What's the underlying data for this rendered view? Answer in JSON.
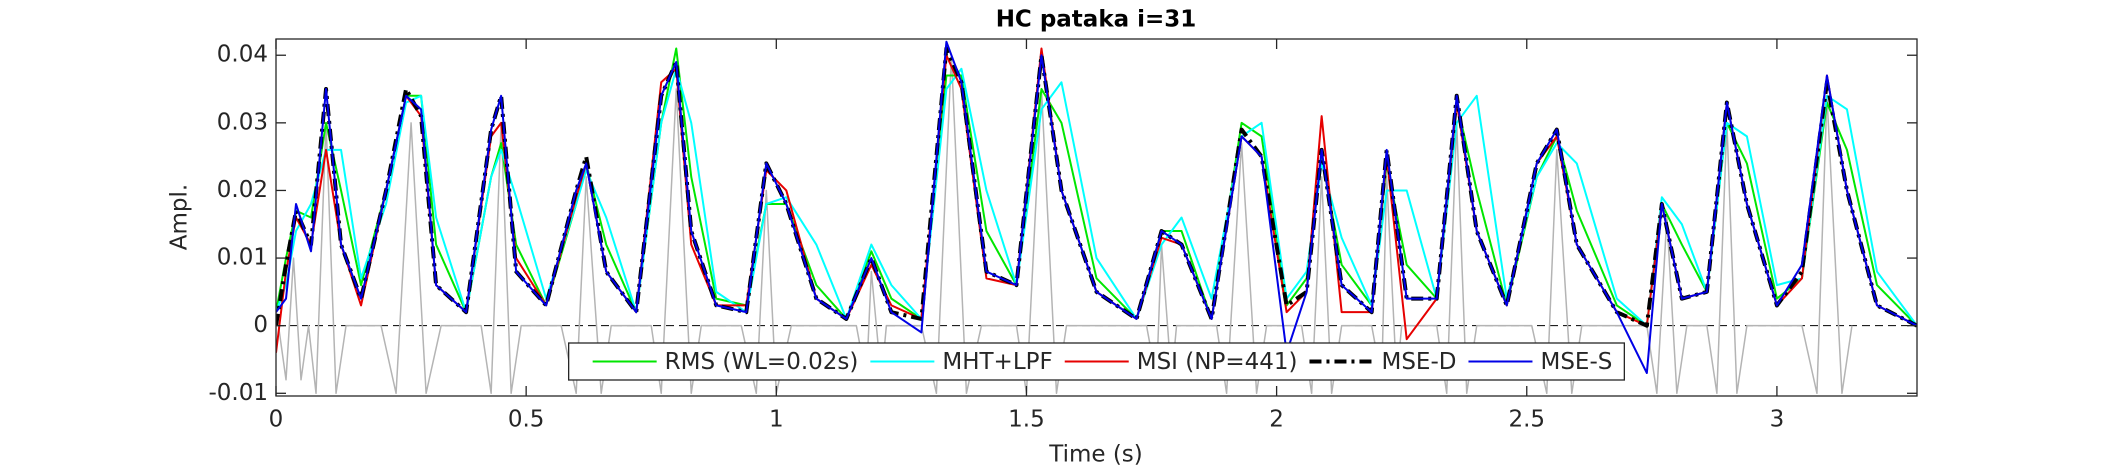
{
  "chart_data": {
    "type": "line",
    "title": "HC pataka i=31",
    "x_label": "Time (s)",
    "y_label": "Ampl.",
    "xlim": [
      0,
      3.28
    ],
    "ylim": [
      -0.0104,
      0.0424
    ],
    "xticks": [
      0,
      0.5,
      1,
      1.5,
      2,
      2.5,
      3
    ],
    "yticks": [
      -0.01,
      0,
      0.01,
      0.02,
      0.03,
      0.04
    ],
    "hlines": [
      0
    ],
    "legend": "lower center",
    "x": [
      0,
      0.02,
      0.04,
      0.07,
      0.1,
      0.13,
      0.17,
      0.22,
      0.26,
      0.29,
      0.32,
      0.38,
      0.43,
      0.45,
      0.48,
      0.54,
      0.6,
      0.62,
      0.66,
      0.72,
      0.77,
      0.8,
      0.83,
      0.88,
      0.94,
      0.98,
      1.02,
      1.08,
      1.14,
      1.19,
      1.23,
      1.29,
      1.34,
      1.37,
      1.42,
      1.48,
      1.53,
      1.57,
      1.64,
      1.72,
      1.77,
      1.81,
      1.87,
      1.93,
      1.97,
      2.02,
      2.06,
      2.09,
      2.13,
      2.19,
      2.22,
      2.26,
      2.32,
      2.36,
      2.4,
      2.46,
      2.52,
      2.56,
      2.6,
      2.68,
      2.74,
      2.77,
      2.81,
      2.86,
      2.9,
      2.94,
      3.0,
      3.05,
      3.1,
      3.14,
      3.2,
      3.28
    ],
    "signal": {
      "color": "#b4b4b4",
      "x": [
        0.005,
        0.02,
        0.035,
        0.05,
        0.065,
        0.08,
        0.1,
        0.12,
        0.14,
        0.21,
        0.24,
        0.27,
        0.3,
        0.33,
        0.41,
        0.43,
        0.45,
        0.47,
        0.49,
        0.57,
        0.6,
        0.62,
        0.65,
        0.67,
        0.75,
        0.77,
        0.8,
        0.83,
        0.85,
        0.93,
        0.96,
        0.98,
        1.0,
        1.03,
        1.16,
        1.18,
        1.19,
        1.21,
        1.22,
        1.29,
        1.32,
        1.35,
        1.38,
        1.41,
        1.48,
        1.5,
        1.53,
        1.56,
        1.58,
        1.74,
        1.76,
        1.77,
        1.79,
        1.8,
        1.88,
        1.9,
        1.93,
        1.96,
        1.98,
        2.05,
        2.07,
        2.09,
        2.11,
        2.13,
        2.19,
        2.21,
        2.22,
        2.24,
        2.25,
        2.32,
        2.34,
        2.36,
        2.38,
        2.4,
        2.51,
        2.54,
        2.56,
        2.59,
        2.61,
        2.74,
        2.76,
        2.78,
        2.8,
        2.82,
        2.86,
        2.88,
        2.9,
        2.92,
        2.94,
        3.05,
        3.08,
        3.1,
        3.13,
        3.15
      ],
      "values": [
        0,
        -0.008,
        0.01,
        -0.008,
        0,
        -0.01,
        0.03,
        -0.01,
        0,
        0,
        -0.01,
        0.03,
        -0.01,
        0,
        0,
        -0.01,
        0.03,
        -0.01,
        0,
        0,
        -0.01,
        0.022,
        -0.01,
        0,
        0,
        -0.01,
        0.035,
        -0.01,
        0,
        0,
        -0.01,
        0.02,
        -0.01,
        0,
        0,
        -0.008,
        0.008,
        -0.008,
        0,
        0,
        -0.01,
        0.04,
        -0.01,
        0,
        0,
        -0.01,
        0.035,
        -0.01,
        0,
        0,
        -0.008,
        0.012,
        -0.008,
        0,
        0,
        -0.01,
        0.027,
        -0.01,
        0,
        0,
        -0.01,
        0.022,
        -0.01,
        0,
        0,
        -0.008,
        0.022,
        -0.008,
        0,
        0,
        -0.01,
        0.03,
        -0.01,
        0,
        0,
        -0.01,
        0.026,
        -0.01,
        0,
        0,
        -0.01,
        0.016,
        -0.01,
        0,
        0,
        -0.01,
        0.03,
        -0.01,
        0,
        0,
        -0.01,
        0.034,
        -0.01,
        0
      ]
    },
    "series": [
      {
        "name": "RMS (WL=0.02s)",
        "color": "#00e600",
        "linestyle": "solid",
        "linewidth": 2,
        "values": [
          0.002,
          0.01,
          0.017,
          0.016,
          0.03,
          0.02,
          0.006,
          0.02,
          0.034,
          0.034,
          0.012,
          0.002,
          0.022,
          0.027,
          0.012,
          0.003,
          0.018,
          0.024,
          0.012,
          0.002,
          0.03,
          0.041,
          0.022,
          0.004,
          0.003,
          0.018,
          0.018,
          0.006,
          0.001,
          0.011,
          0.004,
          0.001,
          0.037,
          0.037,
          0.014,
          0.006,
          0.035,
          0.03,
          0.007,
          0.001,
          0.014,
          0.014,
          0.001,
          0.03,
          0.028,
          0.003,
          0.007,
          0.025,
          0.009,
          0.003,
          0.024,
          0.009,
          0.004,
          0.033,
          0.02,
          0.003,
          0.022,
          0.028,
          0.017,
          0.003,
          0.0,
          0.018,
          0.012,
          0.005,
          0.03,
          0.024,
          0.004,
          0.007,
          0.033,
          0.026,
          0.006,
          0.0
        ]
      },
      {
        "name": "MHT+LPF",
        "color": "#00ffff",
        "linestyle": "solid",
        "linewidth": 2,
        "values": [
          0.002,
          0.006,
          0.014,
          0.018,
          0.026,
          0.026,
          0.007,
          0.018,
          0.033,
          0.034,
          0.016,
          0.002,
          0.022,
          0.026,
          0.019,
          0.004,
          0.018,
          0.023,
          0.016,
          0.002,
          0.03,
          0.038,
          0.03,
          0.005,
          0.002,
          0.018,
          0.019,
          0.012,
          0.001,
          0.012,
          0.006,
          0.001,
          0.035,
          0.038,
          0.02,
          0.006,
          0.032,
          0.036,
          0.01,
          0.001,
          0.012,
          0.016,
          0.004,
          0.028,
          0.03,
          0.004,
          0.008,
          0.024,
          0.013,
          0.003,
          0.02,
          0.02,
          0.004,
          0.03,
          0.034,
          0.004,
          0.022,
          0.027,
          0.024,
          0.004,
          0.0,
          0.019,
          0.015,
          0.005,
          0.03,
          0.028,
          0.006,
          0.007,
          0.034,
          0.032,
          0.008,
          0.0
        ]
      },
      {
        "name": "MSI (NP=441)",
        "color": "#e60000",
        "linestyle": "solid",
        "linewidth": 2,
        "values": [
          -0.004,
          0.008,
          0.016,
          0.012,
          0.026,
          0.012,
          0.003,
          0.02,
          0.034,
          0.031,
          0.006,
          0.002,
          0.028,
          0.03,
          0.01,
          0.003,
          0.019,
          0.024,
          0.008,
          0.002,
          0.036,
          0.038,
          0.012,
          0.003,
          0.003,
          0.023,
          0.02,
          0.004,
          0.001,
          0.009,
          0.003,
          0.001,
          0.04,
          0.035,
          0.007,
          0.006,
          0.041,
          0.02,
          0.005,
          0.001,
          0.013,
          0.012,
          0.001,
          0.028,
          0.025,
          0.002,
          0.005,
          0.031,
          0.002,
          0.002,
          0.025,
          -0.002,
          0.004,
          0.033,
          0.014,
          0.003,
          0.024,
          0.028,
          0.012,
          0.002,
          0.0,
          0.018,
          0.004,
          0.005,
          0.033,
          0.018,
          0.003,
          0.007,
          0.037,
          0.02,
          0.003,
          0.0
        ]
      },
      {
        "name": "MSE-D",
        "color": "#000000",
        "linestyle": "dashed",
        "linewidth": 4,
        "values": [
          0.0,
          0.009,
          0.017,
          0.012,
          0.035,
          0.012,
          0.004,
          0.02,
          0.035,
          0.031,
          0.006,
          0.002,
          0.029,
          0.034,
          0.008,
          0.003,
          0.02,
          0.025,
          0.008,
          0.002,
          0.034,
          0.039,
          0.014,
          0.003,
          0.002,
          0.024,
          0.018,
          0.004,
          0.001,
          0.01,
          0.002,
          0.001,
          0.041,
          0.036,
          0.008,
          0.006,
          0.04,
          0.02,
          0.005,
          0.001,
          0.014,
          0.012,
          0.001,
          0.029,
          0.025,
          0.003,
          0.005,
          0.026,
          0.006,
          0.002,
          0.026,
          0.004,
          0.004,
          0.034,
          0.014,
          0.003,
          0.024,
          0.029,
          0.012,
          0.002,
          0.0,
          0.018,
          0.004,
          0.005,
          0.033,
          0.018,
          0.003,
          0.008,
          0.036,
          0.02,
          0.003,
          0.0
        ]
      },
      {
        "name": "MSE-S",
        "color": "#0000e6",
        "linestyle": "solid",
        "linewidth": 2,
        "values": [
          0.002,
          0.004,
          0.018,
          0.011,
          0.035,
          0.012,
          0.004,
          0.02,
          0.034,
          0.032,
          0.006,
          0.002,
          0.029,
          0.034,
          0.008,
          0.003,
          0.02,
          0.024,
          0.008,
          0.002,
          0.034,
          0.039,
          0.014,
          0.003,
          0.002,
          0.024,
          0.018,
          0.004,
          0.001,
          0.01,
          0.002,
          -0.001,
          0.042,
          0.036,
          0.008,
          0.006,
          0.04,
          0.02,
          0.005,
          0.001,
          0.014,
          0.012,
          0.001,
          0.028,
          0.025,
          -0.004,
          0.005,
          0.026,
          0.006,
          0.002,
          0.026,
          0.004,
          0.004,
          0.034,
          0.014,
          0.003,
          0.024,
          0.029,
          0.012,
          0.002,
          -0.007,
          0.018,
          0.004,
          0.005,
          0.033,
          0.018,
          0.003,
          0.009,
          0.037,
          0.02,
          0.003,
          0.0
        ]
      }
    ]
  }
}
